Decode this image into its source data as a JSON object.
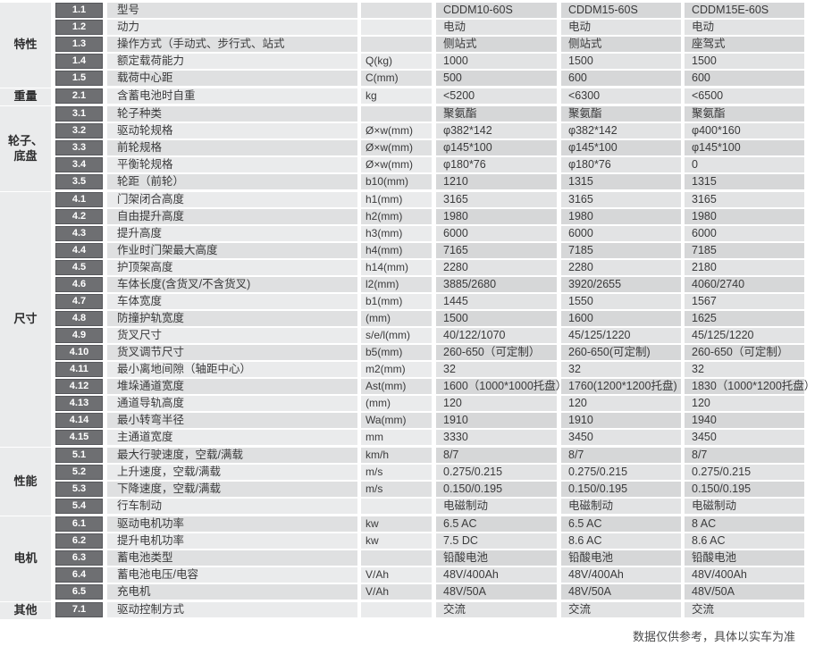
{
  "table": {
    "sections": [
      {
        "category": "特性",
        "rows": [
          {
            "num": "1.1",
            "label": "型号",
            "unit": "",
            "values": [
              "CDDM10-60S",
              "CDDM15-60S",
              "CDDM15E-60S"
            ]
          },
          {
            "num": "1.2",
            "label": "动力",
            "unit": "",
            "values": [
              "电动",
              "电动",
              "电动"
            ]
          },
          {
            "num": "1.3",
            "label": "操作方式（手动式、步行式、站式",
            "unit": "",
            "values": [
              "侧站式",
              "侧站式",
              "座驾式"
            ]
          },
          {
            "num": "1.4",
            "label": "额定载荷能力",
            "unit": "Q(kg)",
            "values": [
              "1000",
              "1500",
              "1500"
            ]
          },
          {
            "num": "1.5",
            "label": "载荷中心距",
            "unit": "C(mm)",
            "values": [
              "500",
              "600",
              "600"
            ]
          }
        ]
      },
      {
        "category": "重量",
        "rows": [
          {
            "num": "2.1",
            "label": "含蓄电池时自重",
            "unit": "kg",
            "values": [
              "<5200",
              "<6300",
              "<6500"
            ]
          }
        ]
      },
      {
        "category": "轮子、底盘",
        "rows": [
          {
            "num": "3.1",
            "label": "轮子种类",
            "unit": "",
            "values": [
              "聚氨酯",
              "聚氨酯",
              "聚氨酯"
            ]
          },
          {
            "num": "3.2",
            "label": "驱动轮规格",
            "unit": "Ø×w(mm)",
            "values": [
              "φ382*142",
              "φ382*142",
              "φ400*160"
            ]
          },
          {
            "num": "3.3",
            "label": "前轮规格",
            "unit": "Ø×w(mm)",
            "values": [
              "φ145*100",
              "φ145*100",
              "φ145*100"
            ]
          },
          {
            "num": "3.4",
            "label": "平衡轮规格",
            "unit": "Ø×w(mm)",
            "values": [
              "φ180*76",
              "φ180*76",
              "0"
            ]
          },
          {
            "num": "3.5",
            "label": "轮距（前轮）",
            "unit": "b10(mm)",
            "values": [
              "1210",
              "1315",
              "1315"
            ]
          }
        ]
      },
      {
        "category": "尺寸",
        "rows": [
          {
            "num": "4.1",
            "label": "门架闭合高度",
            "unit": "h1(mm)",
            "values": [
              "3165",
              "3165",
              "3165"
            ]
          },
          {
            "num": "4.2",
            "label": "自由提升高度",
            "unit": "h2(mm)",
            "values": [
              "1980",
              "1980",
              "1980"
            ]
          },
          {
            "num": "4.3",
            "label": "提升高度",
            "unit": "h3(mm)",
            "values": [
              "6000",
              "6000",
              "6000"
            ]
          },
          {
            "num": "4.4",
            "label": "作业时门架最大高度",
            "unit": "h4(mm)",
            "values": [
              "7165",
              "7185",
              "7185"
            ]
          },
          {
            "num": "4.5",
            "label": "护顶架高度",
            "unit": "h14(mm)",
            "values": [
              "2280",
              "2280",
              "2180"
            ]
          },
          {
            "num": "4.6",
            "label": "车体长度(含货叉/不含货叉)",
            "unit": "l2(mm)",
            "values": [
              "3885/2680",
              "3920/2655",
              "4060/2740"
            ]
          },
          {
            "num": "4.7",
            "label": "车体宽度",
            "unit": "b1(mm)",
            "values": [
              "1445",
              "1550",
              "1567"
            ]
          },
          {
            "num": "4.8",
            "label": "防撞护轨宽度",
            "unit": "(mm)",
            "values": [
              "1500",
              "1600",
              "1625"
            ]
          },
          {
            "num": "4.9",
            "label": "货叉尺寸",
            "unit": "s/e/l(mm)",
            "values": [
              "40/122/1070",
              "45/125/1220",
              "45/125/1220"
            ]
          },
          {
            "num": "4.10",
            "label": "货叉调节尺寸",
            "unit": "b5(mm)",
            "values": [
              "260-650（可定制）",
              "260-650(可定制)",
              "260-650（可定制）"
            ]
          },
          {
            "num": "4.11",
            "label": "最小离地间隙（轴距中心）",
            "unit": "m2(mm)",
            "values": [
              "32",
              "32",
              "32"
            ]
          },
          {
            "num": "4.12",
            "label": "堆垛通道宽度",
            "unit": "Ast(mm)",
            "values": [
              "1600（1000*1000托盘）",
              "1760(1200*1200托盘)",
              "1830（1000*1200托盘）"
            ]
          },
          {
            "num": "4.13",
            "label": "通道导轨高度",
            "unit": "(mm)",
            "values": [
              "120",
              "120",
              "120"
            ]
          },
          {
            "num": "4.14",
            "label": "最小转弯半径",
            "unit": "Wa(mm)",
            "values": [
              "1910",
              "1910",
              "1940"
            ]
          },
          {
            "num": "4.15",
            "label": "主通道宽度",
            "unit": "mm",
            "values": [
              "3330",
              "3450",
              "3450"
            ]
          }
        ]
      },
      {
        "category": "性能",
        "rows": [
          {
            "num": "5.1",
            "label": "最大行驶速度，空载/满载",
            "unit": "km/h",
            "values": [
              "8/7",
              "8/7",
              "8/7"
            ]
          },
          {
            "num": "5.2",
            "label": "上升速度，空载/满载",
            "unit": "m/s",
            "values": [
              "0.275/0.215",
              "0.275/0.215",
              "0.275/0.215"
            ]
          },
          {
            "num": "5.3",
            "label": "下降速度，空载/满载",
            "unit": "m/s",
            "values": [
              "0.150/0.195",
              "0.150/0.195",
              "0.150/0.195"
            ]
          },
          {
            "num": "5.4",
            "label": "行车制动",
            "unit": "",
            "values": [
              "电磁制动",
              "电磁制动",
              "电磁制动"
            ]
          }
        ]
      },
      {
        "category": "电机",
        "rows": [
          {
            "num": "6.1",
            "label": "驱动电机功率",
            "unit": "kw",
            "values": [
              "6.5 AC",
              "6.5 AC",
              "8 AC"
            ]
          },
          {
            "num": "6.2",
            "label": "提升电机功率",
            "unit": "kw",
            "values": [
              "7.5 DC",
              "8.6 AC",
              "8.6 AC"
            ]
          },
          {
            "num": "6.3",
            "label": "蓄电池类型",
            "unit": "",
            "values": [
              "铅酸电池",
              "铅酸电池",
              "铅酸电池"
            ]
          },
          {
            "num": "6.4",
            "label": "蓄电池电压/电容",
            "unit": "V/Ah",
            "values": [
              "48V/400Ah",
              "48V/400Ah",
              "48V/400Ah"
            ]
          },
          {
            "num": "6.5",
            "label": "充电机",
            "unit": "V/Ah",
            "values": [
              "48V/50A",
              "48V/50A",
              "48V/50A"
            ]
          }
        ]
      },
      {
        "category": "其他",
        "rows": [
          {
            "num": "7.1",
            "label": "驱动控制方式",
            "unit": "",
            "values": [
              "交流",
              "交流",
              "交流"
            ]
          }
        ]
      }
    ]
  },
  "footer": {
    "note": "数据仅供参考，具体以实车为准"
  },
  "colors": {
    "badge_bg": "#6e6f72",
    "badge_border": "#56575b",
    "stripe_dark_label": "#dfe0e1",
    "stripe_dark_value": "#d6d7d8",
    "stripe_light_label": "#eaebec",
    "stripe_light_value": "#e2e3e4",
    "category_bg": "#eaebec",
    "text": "#3a3a3b"
  }
}
